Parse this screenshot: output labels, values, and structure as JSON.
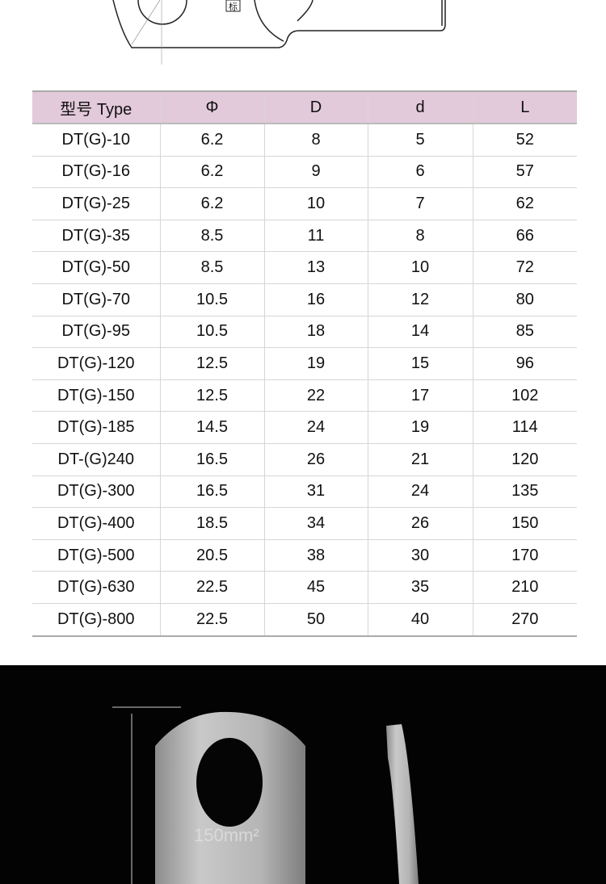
{
  "drawing": {
    "label_glyph": "标"
  },
  "table": {
    "headers": [
      "型号 Type",
      "Φ",
      "D",
      "d",
      "L"
    ],
    "rows": [
      [
        "DT(G)-10",
        "6.2",
        "8",
        "5",
        "52"
      ],
      [
        "DT(G)-16",
        "6.2",
        "9",
        "6",
        "57"
      ],
      [
        "DT(G)-25",
        "6.2",
        "10",
        "7",
        "62"
      ],
      [
        "DT(G)-35",
        "8.5",
        "11",
        "8",
        "66"
      ],
      [
        "DT(G)-50",
        "8.5",
        "13",
        "10",
        "72"
      ],
      [
        "DT(G)-70",
        "10.5",
        "16",
        "12",
        "80"
      ],
      [
        "DT(G)-95",
        "10.5",
        "18",
        "14",
        "85"
      ],
      [
        "DT(G)-120",
        "12.5",
        "19",
        "15",
        "96"
      ],
      [
        "DT(G)-150",
        "12.5",
        "22",
        "17",
        "102"
      ],
      [
        "DT(G)-185",
        "14.5",
        "24",
        "19",
        "114"
      ],
      [
        "DT-(G)240",
        "16.5",
        "26",
        "21",
        "120"
      ],
      [
        "DT(G)-300",
        "16.5",
        "31",
        "24",
        "135"
      ],
      [
        "DT(G)-400",
        "18.5",
        "34",
        "26",
        "150"
      ],
      [
        "DT(G)-500",
        "20.5",
        "38",
        "30",
        "170"
      ],
      [
        "DT(G)-630",
        "22.5",
        "45",
        "35",
        "210"
      ],
      [
        "DT(G)-800",
        "22.5",
        "50",
        "40",
        "270"
      ]
    ]
  },
  "photo": {
    "stamp_text": "150mm²"
  },
  "colors": {
    "header_bg": "#e3cadb",
    "photo_bg": "#030303"
  }
}
